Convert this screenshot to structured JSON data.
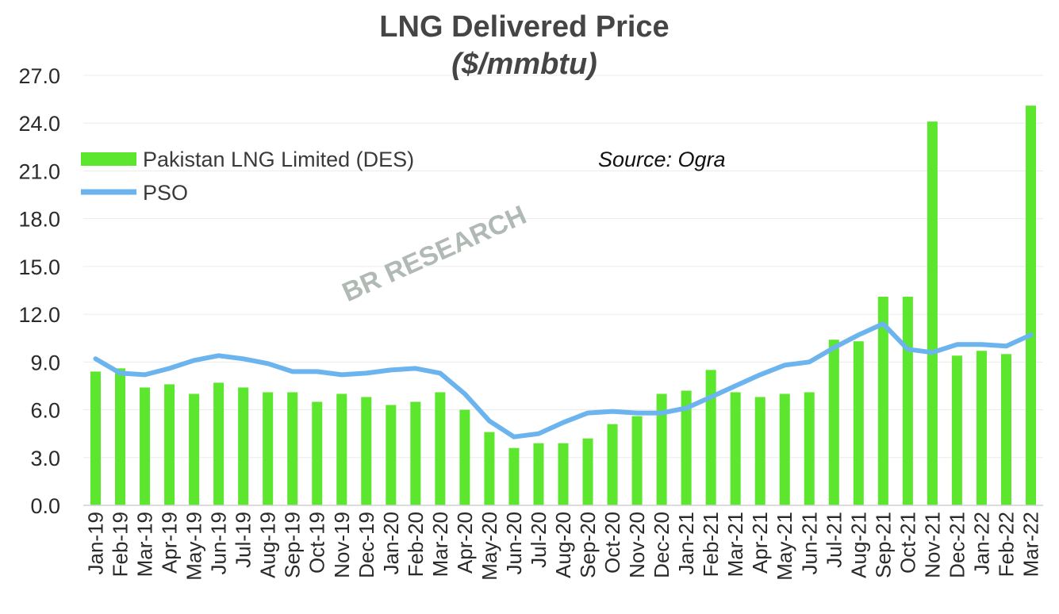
{
  "chart_data": {
    "type": "bar",
    "title": "LNG Delivered Price",
    "subtitle": "($/mmbtu)",
    "source_note": "Source: Ogra",
    "watermark": "BR RESEARCH",
    "ylim": [
      0,
      27
    ],
    "yticks": [
      "0.0",
      "3.0",
      "6.0",
      "9.0",
      "12.0",
      "15.0",
      "18.0",
      "21.0",
      "24.0",
      "27.0"
    ],
    "grid": true,
    "legend_position": "top-left",
    "categories": [
      "Jan-19",
      "Feb-19",
      "Mar-19",
      "Apr-19",
      "May-19",
      "Jun-19",
      "Jul-19",
      "Aug-19",
      "Sep-19",
      "Oct-19",
      "Nov-19",
      "Dec-19",
      "Jan-20",
      "Feb-20",
      "Mar-20",
      "Apr-20",
      "May-20",
      "Jun-20",
      "Jul-20",
      "Aug-20",
      "Sep-20",
      "Oct-20",
      "Nov-20",
      "Dec-20",
      "Jan-21",
      "Feb-21",
      "Mar-21",
      "Apr-21",
      "May-21",
      "Jun-21",
      "Jul-21",
      "Aug-21",
      "Sep-21",
      "Oct-21",
      "Nov-21",
      "Dec-21",
      "Jan-22",
      "Feb-22",
      "Mar-22"
    ],
    "series": [
      {
        "name": "Pakistan LNG Limited (DES)",
        "kind": "bar",
        "color": "#5CE62E",
        "values": [
          8.4,
          8.6,
          7.4,
          7.6,
          7.0,
          7.7,
          7.4,
          7.1,
          7.1,
          6.5,
          7.0,
          6.8,
          6.3,
          6.5,
          7.1,
          6.0,
          4.6,
          3.6,
          3.9,
          3.9,
          4.2,
          5.1,
          5.6,
          7.0,
          7.2,
          8.5,
          7.1,
          6.8,
          7.0,
          7.1,
          10.4,
          10.3,
          13.1,
          13.1,
          24.1,
          9.4,
          9.7,
          9.5,
          25.1
        ]
      },
      {
        "name": "PSO",
        "kind": "line",
        "color": "#6CB4EE",
        "values": [
          9.2,
          8.3,
          8.2,
          8.6,
          9.1,
          9.4,
          9.2,
          8.9,
          8.4,
          8.4,
          8.2,
          8.3,
          8.5,
          8.6,
          8.3,
          7.0,
          5.3,
          4.3,
          4.5,
          5.2,
          5.8,
          5.9,
          5.8,
          5.8,
          6.1,
          6.8,
          7.5,
          8.2,
          8.8,
          9.0,
          9.9,
          10.7,
          11.4,
          9.8,
          9.6,
          10.1,
          10.1,
          10.0,
          10.7
        ]
      }
    ]
  }
}
